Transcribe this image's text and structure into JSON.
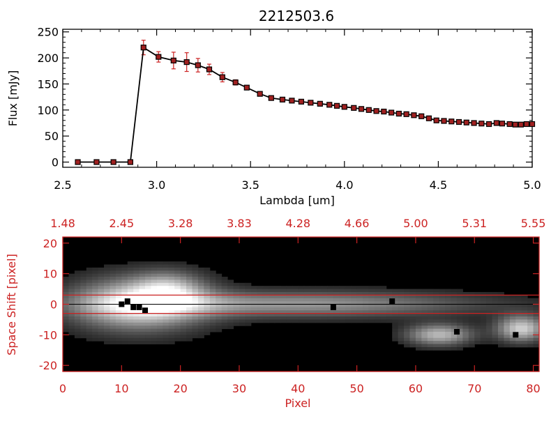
{
  "title": "2212503.6",
  "colors": {
    "axis": "#000000",
    "accent": "#cc2222",
    "line": "#000000",
    "marker_fill": "#a02020"
  },
  "chart_data": [
    {
      "type": "line",
      "name": "spectrum",
      "title": "2212503.6",
      "xlabel": "Lambda [um]",
      "ylabel": "Flux [mJy]",
      "xlim": [
        2.5,
        5.0
      ],
      "ylim": [
        -10,
        255
      ],
      "xticks": [
        2.5,
        3.0,
        3.5,
        4.0,
        4.5,
        5.0
      ],
      "xtick_labels": [
        "2.5",
        "3.0",
        "3.5",
        "4.0",
        "4.5",
        "5.0"
      ],
      "yticks": [
        0,
        50,
        100,
        150,
        200,
        250
      ],
      "ytick_labels": [
        "0",
        "50",
        "100",
        "150",
        "200",
        "250"
      ],
      "grid": false,
      "x": [
        2.58,
        2.68,
        2.77,
        2.86,
        2.93,
        3.01,
        3.09,
        3.16,
        3.22,
        3.28,
        3.35,
        3.42,
        3.48,
        3.55,
        3.61,
        3.67,
        3.72,
        3.77,
        3.82,
        3.87,
        3.92,
        3.96,
        4.0,
        4.05,
        4.09,
        4.13,
        4.17,
        4.21,
        4.25,
        4.29,
        4.33,
        4.37,
        4.41,
        4.45,
        4.49,
        4.53,
        4.57,
        4.61,
        4.65,
        4.69,
        4.73,
        4.77,
        4.81,
        4.84,
        4.88,
        4.91,
        4.94,
        4.97,
        5.0
      ],
      "y": [
        0,
        0,
        0,
        0,
        220,
        202,
        195,
        192,
        186,
        178,
        163,
        153,
        143,
        131,
        123,
        120,
        118,
        116,
        114,
        112,
        110,
        108,
        106,
        104,
        102,
        100,
        98,
        97,
        95,
        93,
        92,
        90,
        88,
        84,
        80,
        79,
        78,
        77,
        76,
        75,
        74,
        73,
        75,
        74,
        73,
        72,
        72,
        73,
        73
      ],
      "yerr": [
        0,
        0,
        0,
        0,
        14,
        10,
        16,
        18,
        13,
        10,
        9,
        5,
        4,
        3,
        3,
        2,
        2,
        2,
        2,
        2,
        2,
        2,
        2,
        2,
        2,
        2,
        2,
        2,
        2,
        2,
        2,
        2,
        2,
        2,
        2,
        2,
        2,
        2,
        2,
        2,
        2,
        2,
        2,
        2,
        2,
        2,
        2,
        2,
        2
      ]
    },
    {
      "type": "heatmap",
      "name": "spatial-profile",
      "xlabel": "Pixel",
      "ylabel": "Space Shift [pixel]",
      "xlim": [
        0,
        81
      ],
      "ylim": [
        -22,
        22
      ],
      "xticks": [
        0,
        10,
        20,
        30,
        40,
        50,
        60,
        70,
        80
      ],
      "xtick_labels": [
        "0",
        "10",
        "20",
        "30",
        "40",
        "50",
        "60",
        "70",
        "80"
      ],
      "yticks": [
        -20,
        -10,
        0,
        10,
        20
      ],
      "ytick_labels": [
        "-20",
        "-10",
        "0",
        "10",
        "20"
      ],
      "top_axis_ticks": [
        0,
        10,
        20,
        30,
        40,
        50,
        60,
        70,
        80
      ],
      "top_axis_labels": [
        "1.48",
        "2.45",
        "3.28",
        "3.83",
        "4.28",
        "4.66",
        "5.00",
        "5.31",
        "5.55"
      ],
      "extraction_aperture": [
        -3,
        3
      ],
      "colormap": "grayscale",
      "emission_blobs": [
        {
          "x": 13,
          "y": 0,
          "sx": 8,
          "sy": 6,
          "amp": 0.9
        },
        {
          "x": 18,
          "y": 5,
          "sx": 4,
          "sy": 4,
          "amp": 0.45
        },
        {
          "x": 40,
          "y": 0,
          "sx": 22,
          "sy": 3,
          "amp": 0.55
        },
        {
          "x": 64,
          "y": -10,
          "sx": 4,
          "sy": 2.5,
          "amp": 0.7
        },
        {
          "x": 78,
          "y": -8,
          "sx": 3,
          "sy": 3,
          "amp": 0.8
        }
      ],
      "bad_pixels": [
        [
          10,
          0
        ],
        [
          11,
          1
        ],
        [
          12,
          -1
        ],
        [
          13,
          -1
        ],
        [
          14,
          -2
        ],
        [
          46,
          -1
        ],
        [
          56,
          1
        ],
        [
          67,
          -9
        ],
        [
          77,
          -10
        ]
      ]
    }
  ]
}
